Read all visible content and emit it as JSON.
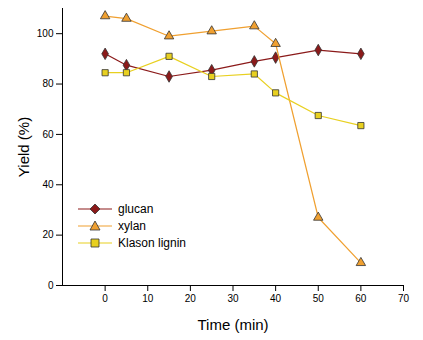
{
  "chart_data": {
    "type": "line",
    "x_label": "Time (min)",
    "y_label": "Yield (%)",
    "x": [
      0,
      5,
      15,
      25,
      35,
      40,
      50,
      60
    ],
    "series": [
      {
        "name": "glucan",
        "color": "#8b1a1a",
        "marker": "diamond",
        "values": [
          92,
          87.5,
          83,
          85.5,
          89,
          90.5,
          93.5,
          92
        ]
      },
      {
        "name": "xylan",
        "color": "#f0a030",
        "marker": "triangle",
        "values": [
          107,
          106,
          99,
          101,
          103,
          96,
          27,
          9
        ]
      },
      {
        "name": "Klason lignin",
        "color": "#e8d020",
        "marker": "square",
        "values": [
          84.5,
          84.5,
          91,
          83,
          84,
          76.5,
          67.5,
          63.5
        ]
      }
    ],
    "xlim": [
      -10,
      70
    ],
    "xticks": [
      0,
      10,
      20,
      30,
      40,
      50,
      60,
      70
    ],
    "ylim": [
      0,
      110
    ],
    "yticks": [
      0,
      20,
      40,
      60,
      80,
      100
    ],
    "legend": "lower left",
    "grid": false
  }
}
